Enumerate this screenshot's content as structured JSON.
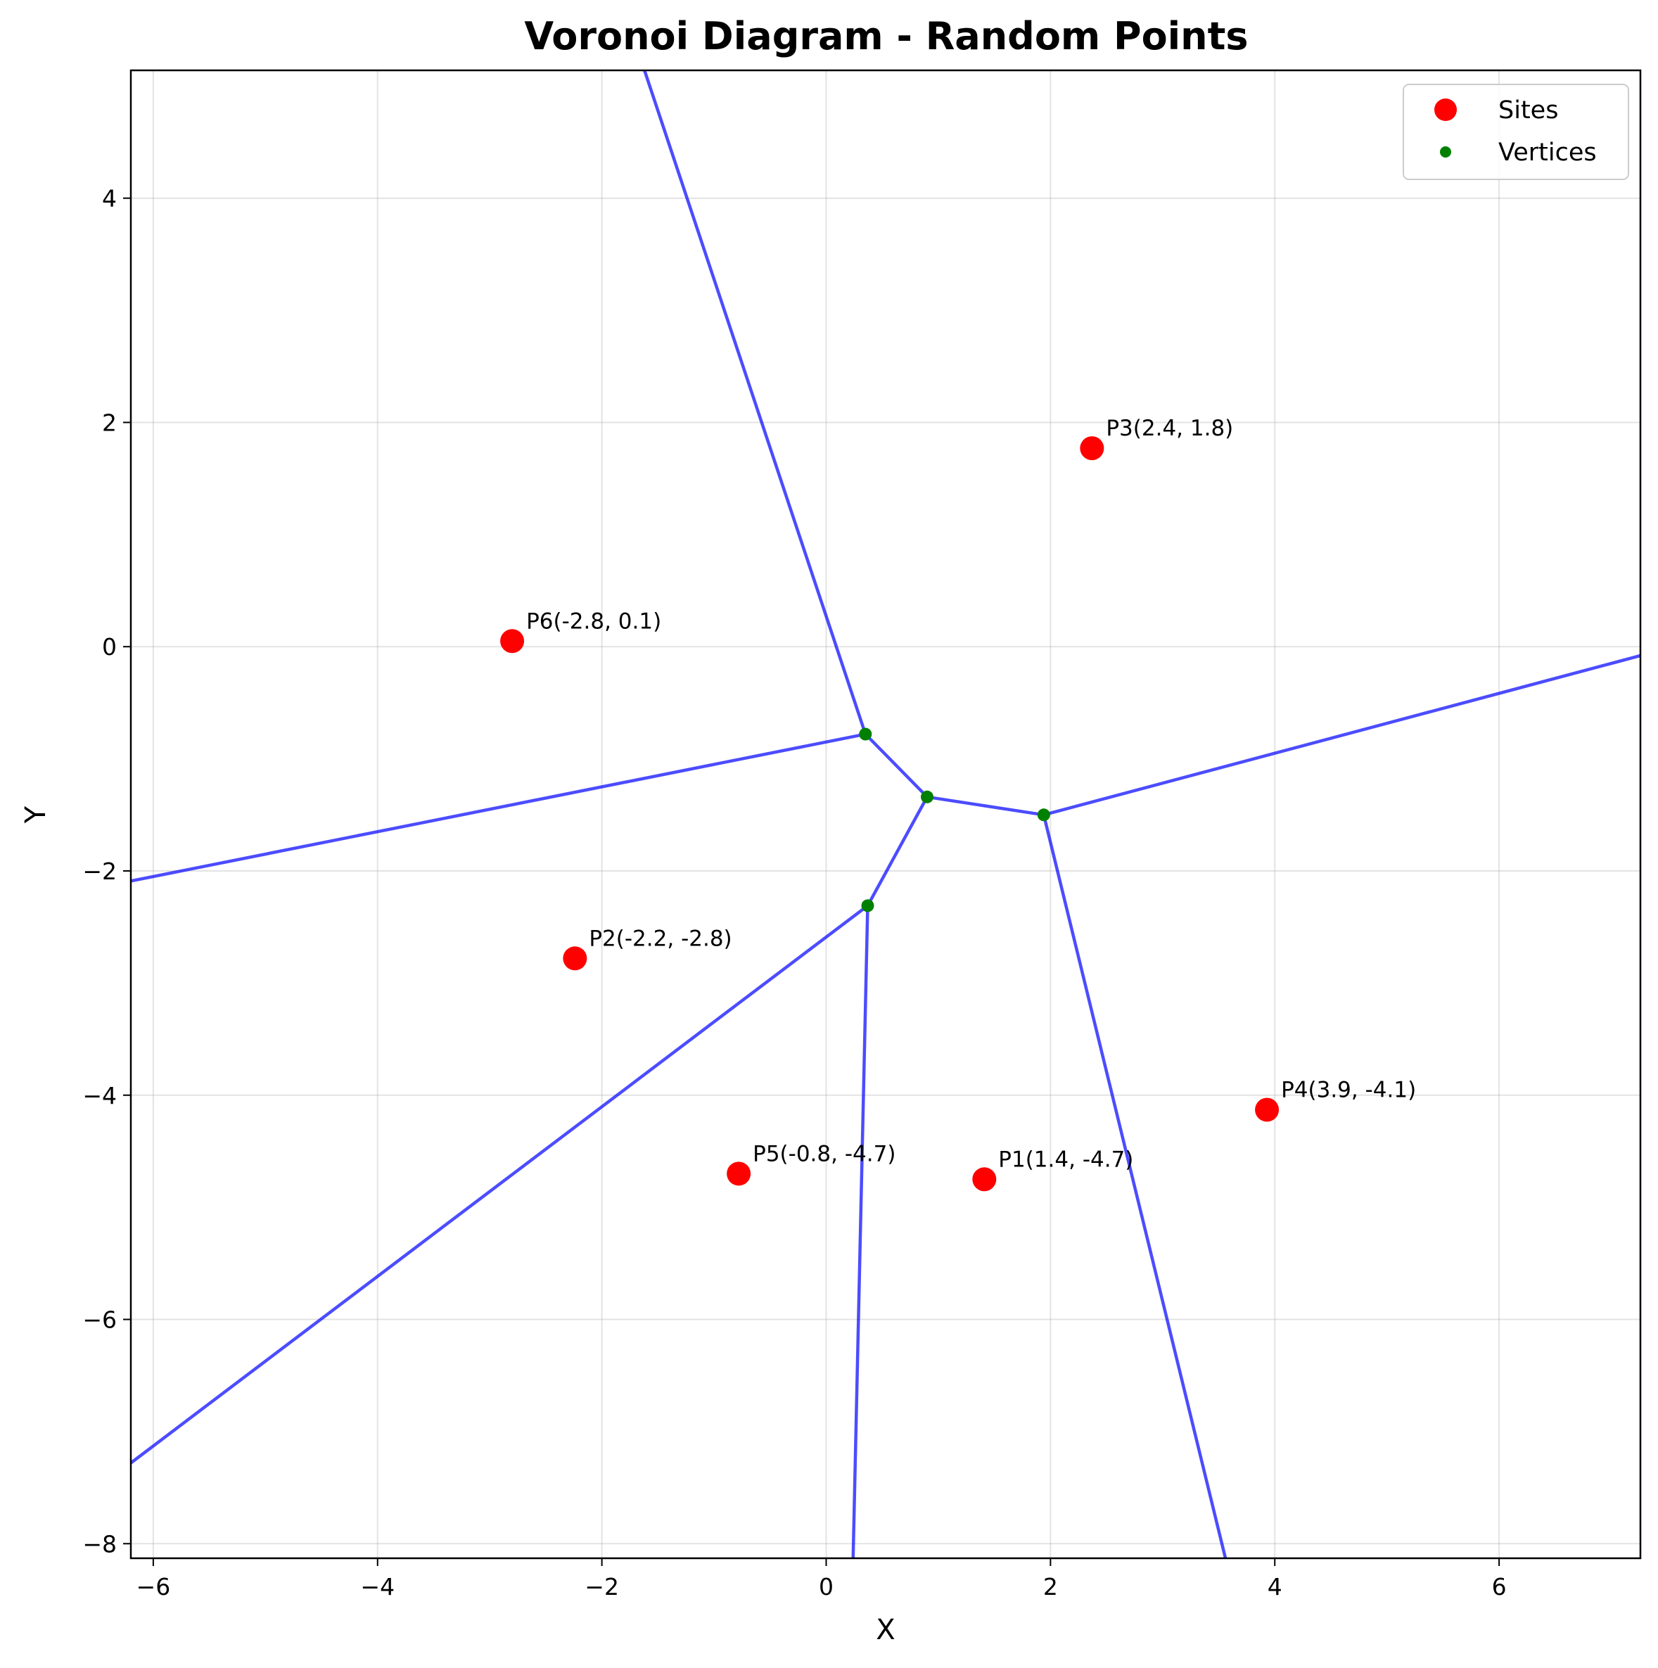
{
  "chart_data": {
    "type": "scatter",
    "title": "Voronoi Diagram - Random Points",
    "xlabel": "X",
    "ylabel": "Y",
    "xlim": [
      -6.2,
      7.26
    ],
    "ylim": [
      -8.13,
      5.14
    ],
    "xticks": [
      -6,
      -4,
      -2,
      0,
      2,
      4,
      6
    ],
    "yticks": [
      -8,
      -6,
      -4,
      -2,
      0,
      2,
      4
    ],
    "grid": true,
    "legend": {
      "placement": "top-right",
      "entries": [
        {
          "label": "Sites",
          "color": "#ff0000",
          "marker": "large-circle"
        },
        {
          "label": "Vertices",
          "color": "#008000",
          "marker": "small-circle"
        }
      ]
    },
    "sites": [
      {
        "label": "P1(1.4, -4.7)",
        "x": 1.41,
        "y": -4.75
      },
      {
        "label": "P2(-2.2, -2.8)",
        "x": -2.24,
        "y": -2.78
      },
      {
        "label": "P3(2.4, 1.8)",
        "x": 2.37,
        "y": 1.77
      },
      {
        "label": "P4(3.9, -4.1)",
        "x": 3.93,
        "y": -4.13
      },
      {
        "label": "P5(-0.8, -4.7)",
        "x": -0.78,
        "y": -4.7
      },
      {
        "label": "P6(-2.8, 0.1)",
        "x": -2.8,
        "y": 0.05
      }
    ],
    "vertices": [
      {
        "x": 0.35,
        "y": -0.78
      },
      {
        "x": 0.9,
        "y": -1.34
      },
      {
        "x": 1.94,
        "y": -1.5
      },
      {
        "x": 0.37,
        "y": -2.31
      }
    ],
    "edges": [
      [
        [
          0.35,
          -0.78
        ],
        [
          0.9,
          -1.34
        ]
      ],
      [
        [
          0.9,
          -1.34
        ],
        [
          1.94,
          -1.5
        ]
      ],
      [
        [
          0.9,
          -1.34
        ],
        [
          0.37,
          -2.31
        ]
      ],
      [
        [
          0.35,
          -0.78
        ],
        [
          -1.62,
          5.14
        ]
      ],
      [
        [
          0.35,
          -0.78
        ],
        [
          -6.2,
          -2.09
        ]
      ],
      [
        [
          1.94,
          -1.5
        ],
        [
          7.26,
          -0.08
        ]
      ],
      [
        [
          1.94,
          -1.5
        ],
        [
          3.56,
          -8.13
        ]
      ],
      [
        [
          0.37,
          -2.31
        ],
        [
          -6.2,
          -7.28
        ]
      ],
      [
        [
          0.37,
          -2.31
        ],
        [
          0.24,
          -8.13
        ]
      ]
    ],
    "colors": {
      "site": "#ff0000",
      "vertex": "#008000",
      "edge": "#0000ff"
    }
  }
}
